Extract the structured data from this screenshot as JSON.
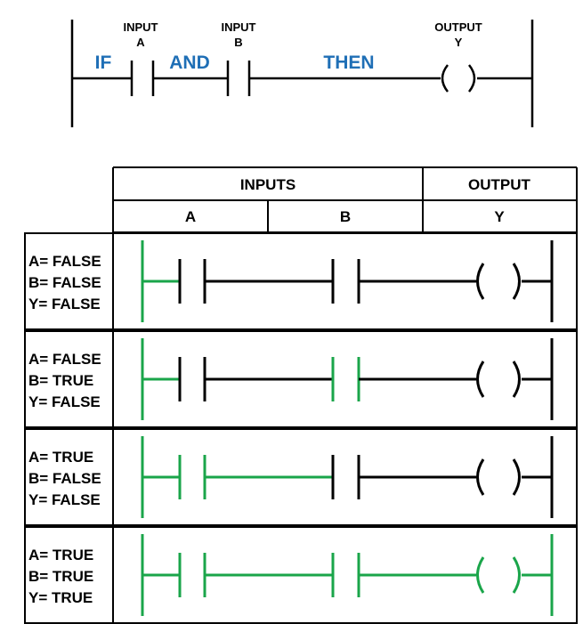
{
  "colors": {
    "on": "#1aa54a",
    "off": "#000000",
    "keyword": "#1f6fb6"
  },
  "top": {
    "input_a_line1": "INPUT",
    "input_a_line2": "A",
    "input_b_line1": "INPUT",
    "input_b_line2": "B",
    "output_line1": "OUTPUT",
    "output_line2": "Y",
    "kw_if": "IF",
    "kw_and": "AND",
    "kw_then": "THEN"
  },
  "table": {
    "header_inputs": "INPUTS",
    "header_output": "OUTPUT",
    "col_a": "A",
    "col_b": "B",
    "col_y": "Y",
    "rows": [
      {
        "lines": [
          "A= FALSE",
          "B= FALSE",
          "Y= FALSE"
        ],
        "a": false,
        "b": false,
        "y": false
      },
      {
        "lines": [
          "A= FALSE",
          "B= TRUE",
          "Y= FALSE"
        ],
        "a": false,
        "b": true,
        "y": false
      },
      {
        "lines": [
          "A= TRUE",
          "B= FALSE",
          "Y= FALSE"
        ],
        "a": true,
        "b": false,
        "y": false
      },
      {
        "lines": [
          "A= TRUE",
          "B= TRUE",
          "Y= TRUE"
        ],
        "a": true,
        "b": true,
        "y": true
      }
    ]
  }
}
